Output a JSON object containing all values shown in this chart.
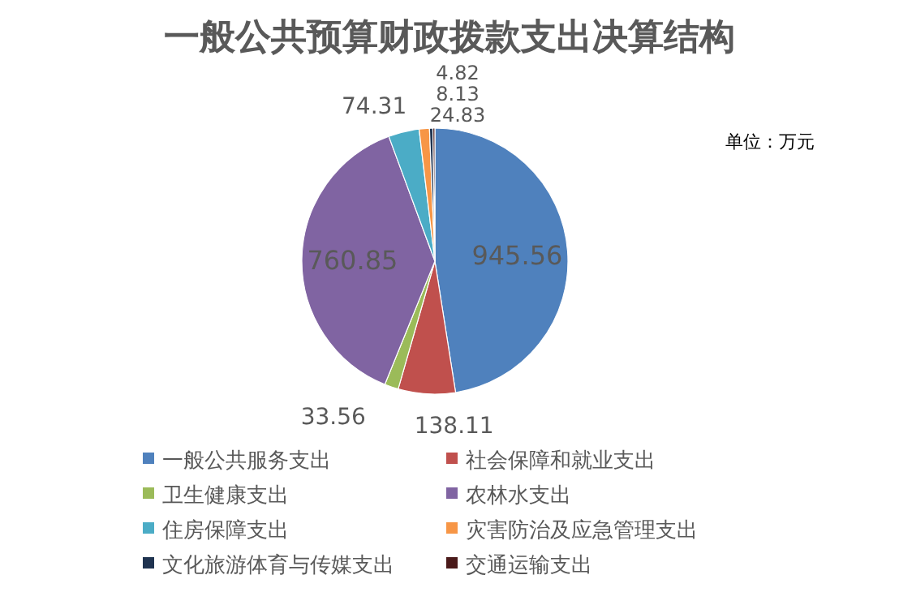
{
  "chart_data": {
    "type": "pie",
    "title": "一般公共预算财政拨款支出决算结构",
    "categories": [
      "一般公共服务支出",
      "社会保障和就业支出",
      "卫生健康支出",
      "农林水支出",
      "住房保障支出",
      "灾害防治及应急管理支出",
      "文化旅游体育与传媒支出",
      "交通运输支出"
    ],
    "values": [
      945.56,
      138.11,
      33.56,
      760.85,
      74.31,
      24.83,
      8.13,
      4.82
    ],
    "colors": [
      "#4f81bd",
      "#c0504d",
      "#9bbb59",
      "#8064a2",
      "#4bacc6",
      "#f79646",
      "#1f3350",
      "#4a1a1a"
    ],
    "data_labels": true,
    "legend": "bottom",
    "annotations": [
      "单位：万元"
    ]
  }
}
